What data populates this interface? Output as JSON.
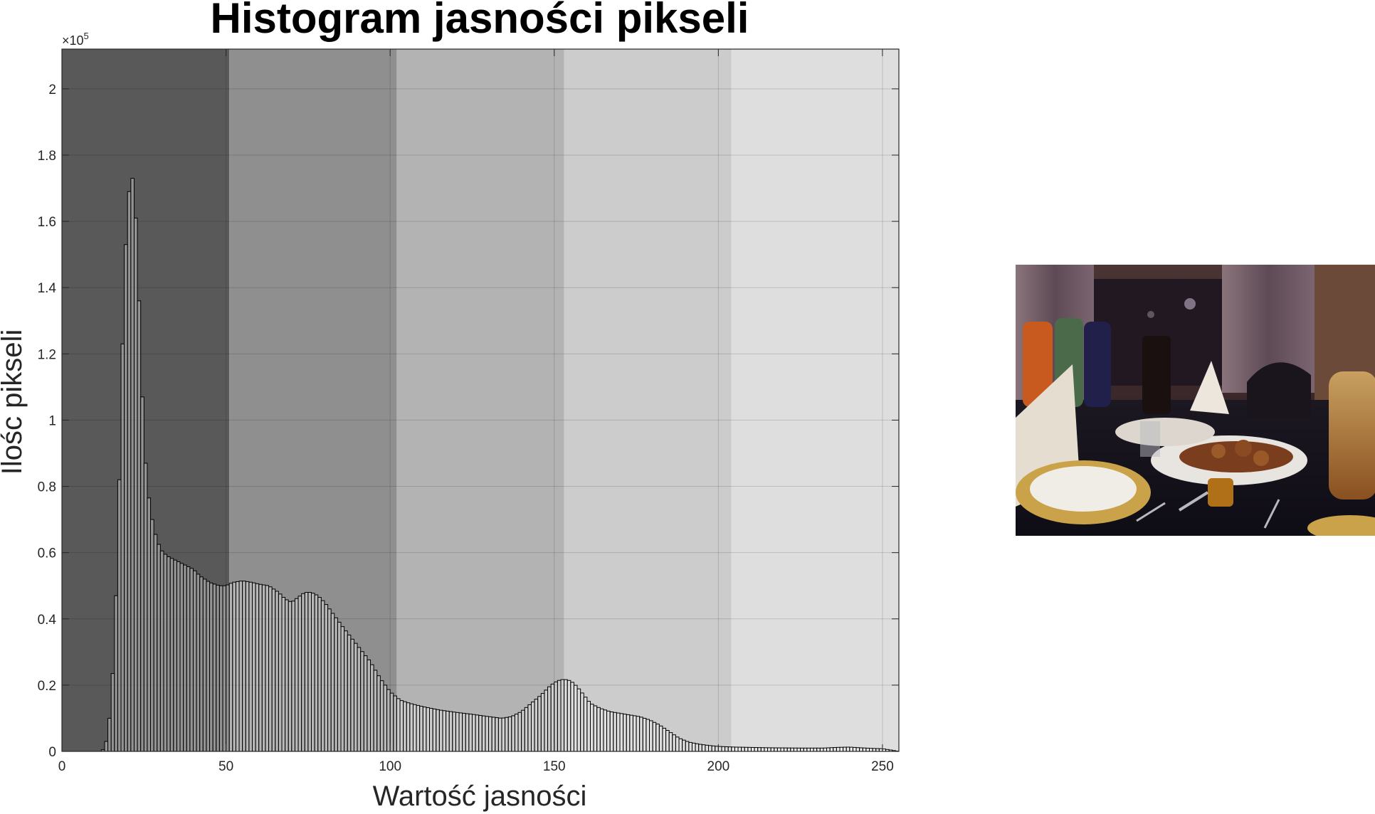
{
  "chart_data": {
    "type": "bar",
    "title": "Histogram jasności pikseli",
    "xlabel": "Wartość jasności",
    "ylabel": "Ilośc pikseli",
    "y_exponent_base": "×10",
    "y_exponent_power": "5",
    "xlim": [
      0,
      255
    ],
    "ylim": [
      0,
      2.12
    ],
    "y_unit_multiplier": 100000,
    "xticks": [
      0,
      50,
      100,
      150,
      200,
      250
    ],
    "yticks": [
      0,
      0.2,
      0.4,
      0.6,
      0.8,
      1,
      1.2,
      1.4,
      1.6,
      1.8,
      2
    ],
    "grid": true,
    "background_bands": [
      {
        "from": 0,
        "to": 51,
        "color": "#595959"
      },
      {
        "from": 51,
        "to": 102,
        "color": "#8f8f8f"
      },
      {
        "from": 102,
        "to": 153,
        "color": "#b3b3b3"
      },
      {
        "from": 153,
        "to": 204,
        "color": "#cccccc"
      },
      {
        "from": 204,
        "to": 255,
        "color": "#dedede"
      }
    ],
    "bar_color": "#ffffff",
    "bar_edge_color": "#000000",
    "keypoints": [
      [
        0,
        0
      ],
      [
        12,
        0
      ],
      [
        13,
        0.01
      ],
      [
        14,
        0.05
      ],
      [
        15,
        0.15
      ],
      [
        16,
        0.32
      ],
      [
        17,
        0.62
      ],
      [
        18,
        1.02
      ],
      [
        19,
        1.44
      ],
      [
        20,
        1.62
      ],
      [
        21,
        1.76
      ],
      [
        22,
        1.7
      ],
      [
        23,
        1.52
      ],
      [
        24,
        1.2
      ],
      [
        25,
        0.94
      ],
      [
        26,
        0.8
      ],
      [
        27,
        0.73
      ],
      [
        28,
        0.67
      ],
      [
        29,
        0.64
      ],
      [
        30,
        0.61
      ],
      [
        32,
        0.59
      ],
      [
        35,
        0.575
      ],
      [
        38,
        0.56
      ],
      [
        40,
        0.55
      ],
      [
        42,
        0.53
      ],
      [
        45,
        0.51
      ],
      [
        48,
        0.5
      ],
      [
        50,
        0.5
      ],
      [
        52,
        0.51
      ],
      [
        55,
        0.515
      ],
      [
        58,
        0.51
      ],
      [
        60,
        0.505
      ],
      [
        63,
        0.5
      ],
      [
        66,
        0.48
      ],
      [
        68,
        0.46
      ],
      [
        70,
        0.45
      ],
      [
        72,
        0.465
      ],
      [
        74,
        0.48
      ],
      [
        76,
        0.48
      ],
      [
        78,
        0.47
      ],
      [
        80,
        0.45
      ],
      [
        83,
        0.41
      ],
      [
        86,
        0.37
      ],
      [
        90,
        0.32
      ],
      [
        94,
        0.27
      ],
      [
        97,
        0.22
      ],
      [
        100,
        0.18
      ],
      [
        103,
        0.155
      ],
      [
        106,
        0.145
      ],
      [
        110,
        0.135
      ],
      [
        115,
        0.125
      ],
      [
        120,
        0.118
      ],
      [
        125,
        0.112
      ],
      [
        130,
        0.105
      ],
      [
        134,
        0.1
      ],
      [
        137,
        0.105
      ],
      [
        140,
        0.12
      ],
      [
        143,
        0.145
      ],
      [
        146,
        0.17
      ],
      [
        149,
        0.2
      ],
      [
        151,
        0.213
      ],
      [
        153,
        0.218
      ],
      [
        155,
        0.213
      ],
      [
        157,
        0.195
      ],
      [
        159,
        0.17
      ],
      [
        161,
        0.145
      ],
      [
        164,
        0.13
      ],
      [
        167,
        0.12
      ],
      [
        170,
        0.115
      ],
      [
        173,
        0.11
      ],
      [
        176,
        0.105
      ],
      [
        179,
        0.095
      ],
      [
        182,
        0.08
      ],
      [
        185,
        0.06
      ],
      [
        188,
        0.04
      ],
      [
        191,
        0.028
      ],
      [
        194,
        0.022
      ],
      [
        197,
        0.018
      ],
      [
        200,
        0.015
      ],
      [
        205,
        0.013
      ],
      [
        215,
        0.011
      ],
      [
        225,
        0.01
      ],
      [
        232,
        0.01
      ],
      [
        236,
        0.012
      ],
      [
        240,
        0.013
      ],
      [
        243,
        0.011
      ],
      [
        247,
        0.009
      ],
      [
        250,
        0.008
      ],
      [
        252,
        0.005
      ],
      [
        255,
        0
      ]
    ]
  },
  "photo": {
    "description_icon": "restaurant-table-photo"
  }
}
